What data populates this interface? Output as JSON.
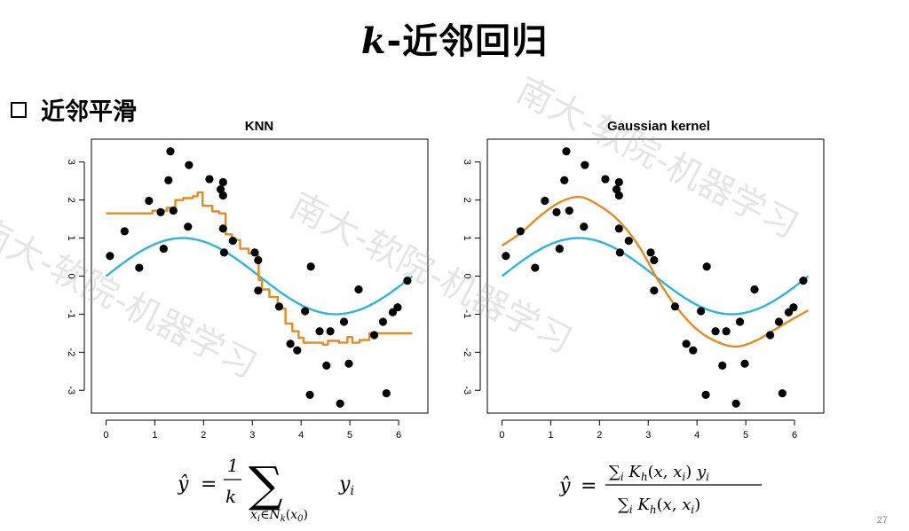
{
  "slide": {
    "title_var": "k",
    "title_text": "-近邻回归",
    "section": "近邻平滑",
    "page_number": "27",
    "watermark": "南大-软院-机器学习"
  },
  "chart_data": [
    {
      "type": "scatter",
      "title": "KNN",
      "xlabel": "",
      "ylabel": "",
      "xlim": [
        -0.3,
        6.6
      ],
      "ylim": [
        -3.6,
        3.6
      ],
      "xticks": [
        0,
        1,
        2,
        3,
        4,
        5,
        6
      ],
      "yticks": [
        -3,
        -2,
        -1,
        0,
        1,
        2,
        3
      ],
      "grid": false,
      "points": [
        [
          0.08,
          0.53
        ],
        [
          0.38,
          1.18
        ],
        [
          0.68,
          0.22
        ],
        [
          0.88,
          1.98
        ],
        [
          1.12,
          1.68
        ],
        [
          1.18,
          0.72
        ],
        [
          1.28,
          2.52
        ],
        [
          1.32,
          3.28
        ],
        [
          1.38,
          1.72
        ],
        [
          1.68,
          1.3
        ],
        [
          1.7,
          2.92
        ],
        [
          2.12,
          2.55
        ],
        [
          2.35,
          2.28
        ],
        [
          2.4,
          2.47
        ],
        [
          2.4,
          2.12
        ],
        [
          2.4,
          1.25
        ],
        [
          2.42,
          0.62
        ],
        [
          2.6,
          0.93
        ],
        [
          3.05,
          0.62
        ],
        [
          3.12,
          0.42
        ],
        [
          3.12,
          -0.38
        ],
        [
          3.55,
          -0.8
        ],
        [
          3.78,
          -1.78
        ],
        [
          3.92,
          -1.95
        ],
        [
          4.08,
          -0.92
        ],
        [
          4.18,
          -3.12
        ],
        [
          4.2,
          0.25
        ],
        [
          4.38,
          -1.45
        ],
        [
          4.52,
          -2.35
        ],
        [
          4.6,
          -1.45
        ],
        [
          4.8,
          -3.35
        ],
        [
          4.88,
          -1.2
        ],
        [
          4.98,
          -2.3
        ],
        [
          5.18,
          -0.35
        ],
        [
          5.5,
          -1.55
        ],
        [
          5.68,
          -1.2
        ],
        [
          5.75,
          -3.08
        ],
        [
          5.88,
          -0.95
        ],
        [
          5.98,
          -0.82
        ],
        [
          6.18,
          -0.12
        ]
      ],
      "series": [
        {
          "type": "curve",
          "color": "#2bb5e0",
          "function": "sin(x)",
          "domain": [
            0,
            6.28
          ]
        },
        {
          "type": "step",
          "color": "#e88a1e",
          "steps": [
            [
              0.0,
              1.65
            ],
            [
              0.95,
              1.72
            ],
            [
              1.25,
              1.8
            ],
            [
              1.42,
              2.0
            ],
            [
              1.58,
              2.05
            ],
            [
              1.78,
              2.1
            ],
            [
              1.88,
              2.2
            ],
            [
              1.98,
              1.85
            ],
            [
              2.18,
              1.7
            ],
            [
              2.32,
              1.65
            ],
            [
              2.45,
              1.1
            ],
            [
              2.58,
              0.95
            ],
            [
              2.75,
              0.72
            ],
            [
              2.92,
              0.6
            ],
            [
              3.05,
              0.55
            ],
            [
              3.13,
              -0.1
            ],
            [
              3.2,
              -0.35
            ],
            [
              3.35,
              -0.55
            ],
            [
              3.52,
              -0.85
            ],
            [
              3.68,
              -1.25
            ],
            [
              3.82,
              -1.45
            ],
            [
              3.95,
              -1.62
            ],
            [
              4.05,
              -1.75
            ],
            [
              4.45,
              -1.8
            ],
            [
              4.55,
              -1.7
            ],
            [
              4.78,
              -1.75
            ],
            [
              4.95,
              -1.6
            ],
            [
              5.05,
              -1.75
            ],
            [
              5.2,
              -1.68
            ],
            [
              5.4,
              -1.5
            ],
            [
              6.28,
              -1.5
            ]
          ]
        }
      ]
    },
    {
      "type": "scatter",
      "title": "Gaussian kernel",
      "xlabel": "",
      "ylabel": "",
      "xlim": [
        -0.3,
        6.6
      ],
      "ylim": [
        -3.6,
        3.6
      ],
      "xticks": [
        0,
        1,
        2,
        3,
        4,
        5,
        6
      ],
      "yticks": [
        -3,
        -2,
        -1,
        0,
        1,
        2,
        3
      ],
      "grid": false,
      "points": [
        [
          0.08,
          0.53
        ],
        [
          0.38,
          1.18
        ],
        [
          0.68,
          0.22
        ],
        [
          0.88,
          1.98
        ],
        [
          1.12,
          1.68
        ],
        [
          1.18,
          0.72
        ],
        [
          1.28,
          2.52
        ],
        [
          1.32,
          3.28
        ],
        [
          1.38,
          1.72
        ],
        [
          1.68,
          1.3
        ],
        [
          1.7,
          2.92
        ],
        [
          2.12,
          2.55
        ],
        [
          2.35,
          2.28
        ],
        [
          2.4,
          2.47
        ],
        [
          2.4,
          2.12
        ],
        [
          2.4,
          1.25
        ],
        [
          2.42,
          0.62
        ],
        [
          2.6,
          0.93
        ],
        [
          3.05,
          0.62
        ],
        [
          3.12,
          0.42
        ],
        [
          3.12,
          -0.38
        ],
        [
          3.55,
          -0.8
        ],
        [
          3.78,
          -1.78
        ],
        [
          3.92,
          -1.95
        ],
        [
          4.08,
          -0.92
        ],
        [
          4.18,
          -3.12
        ],
        [
          4.2,
          0.25
        ],
        [
          4.38,
          -1.45
        ],
        [
          4.52,
          -2.35
        ],
        [
          4.6,
          -1.45
        ],
        [
          4.8,
          -3.35
        ],
        [
          4.88,
          -1.2
        ],
        [
          4.98,
          -2.3
        ],
        [
          5.18,
          -0.35
        ],
        [
          5.5,
          -1.55
        ],
        [
          5.68,
          -1.2
        ],
        [
          5.75,
          -3.08
        ],
        [
          5.88,
          -0.95
        ],
        [
          5.98,
          -0.82
        ],
        [
          6.18,
          -0.12
        ]
      ],
      "series": [
        {
          "type": "curve",
          "color": "#2bb5e0",
          "function": "sin(x)",
          "domain": [
            0,
            6.28
          ]
        },
        {
          "type": "curve",
          "color": "#e88a1e",
          "x": [
            0.0,
            0.4,
            0.8,
            1.2,
            1.6,
            2.0,
            2.4,
            2.8,
            3.2,
            3.6,
            4.0,
            4.4,
            4.8,
            5.2,
            5.6,
            6.0,
            6.28
          ],
          "y": [
            0.8,
            1.15,
            1.6,
            1.95,
            2.08,
            1.85,
            1.45,
            0.8,
            -0.1,
            -0.85,
            -1.4,
            -1.72,
            -1.85,
            -1.7,
            -1.4,
            -1.1,
            -0.9
          ]
        }
      ]
    }
  ]
}
